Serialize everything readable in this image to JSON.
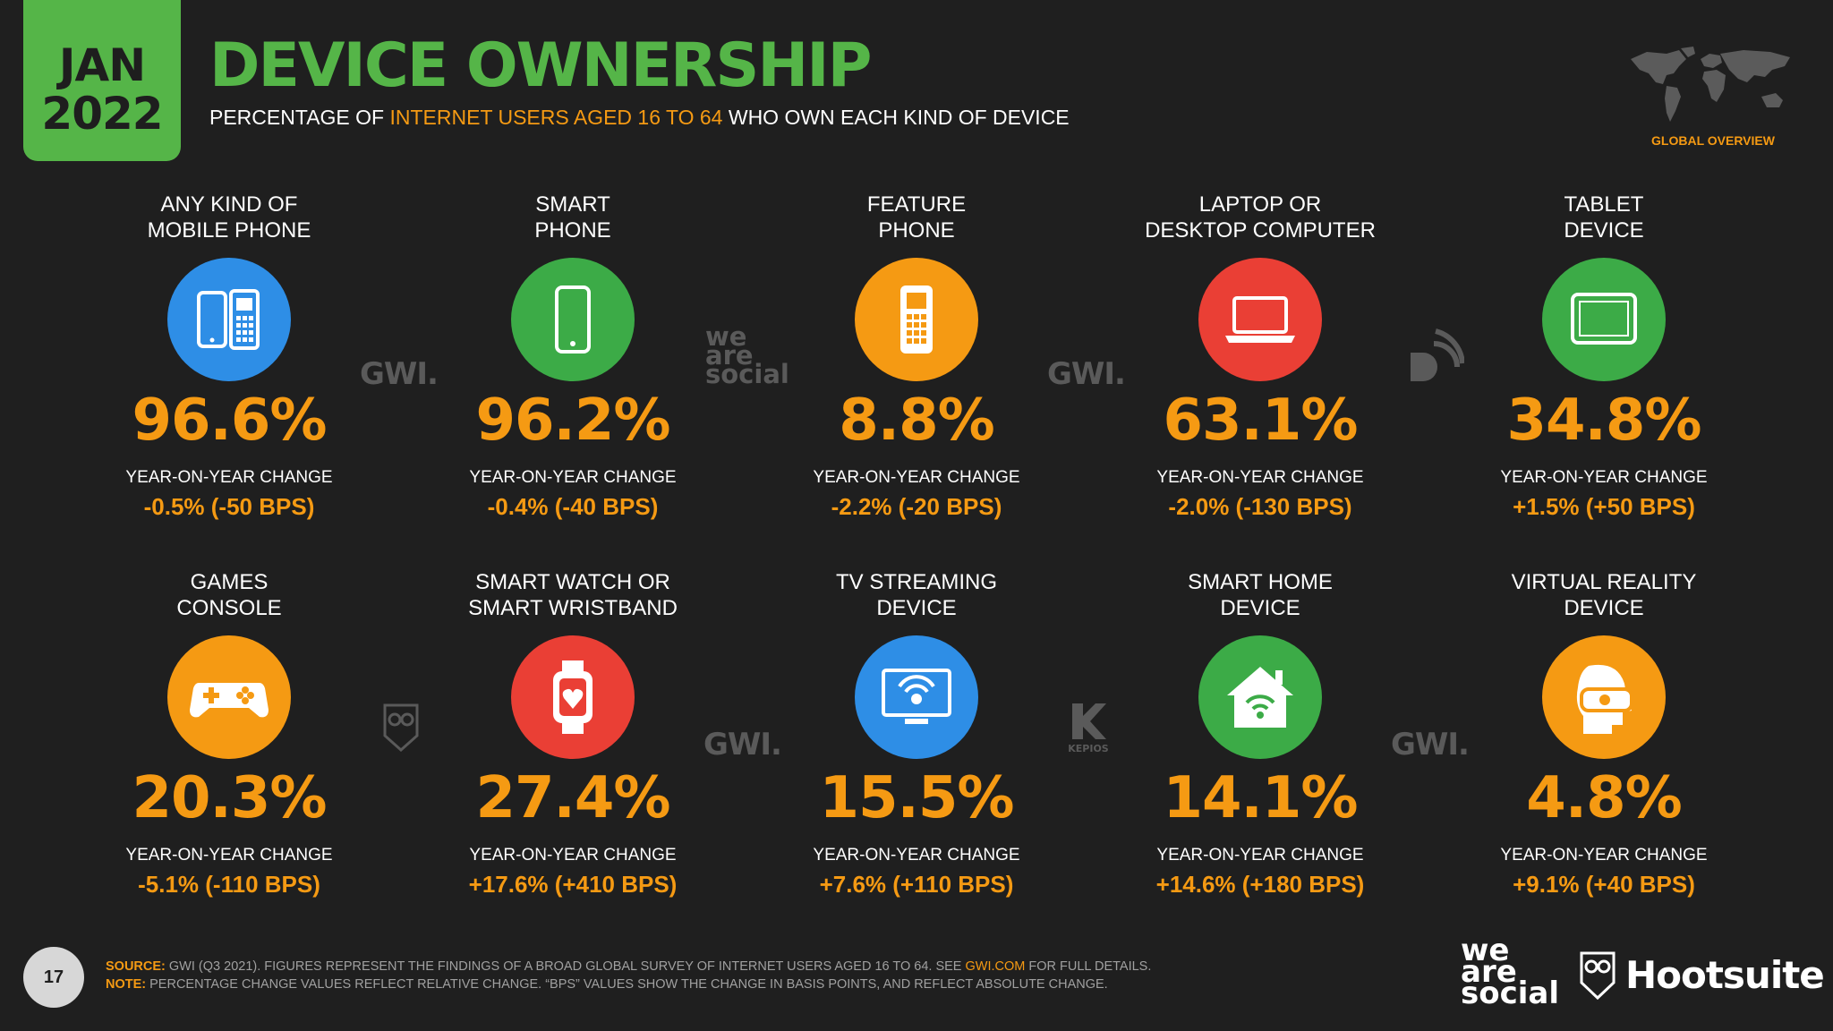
{
  "header": {
    "month": "JAN",
    "year": "2022",
    "title": "DEVICE OWNERSHIP",
    "subtitle_pre": "PERCENTAGE OF ",
    "subtitle_hl": "INTERNET USERS AGED 16 TO 64",
    "subtitle_post": " WHO OWN EACH KIND OF DEVICE",
    "global_label": "GLOBAL OVERVIEW"
  },
  "yoy_label": "YEAR-ON-YEAR CHANGE",
  "devices": [
    {
      "label1": "ANY KIND OF",
      "label2": "MOBILE PHONE",
      "value": "96.6%",
      "change": "-0.5% (-50 BPS)",
      "color": "#2e8ee6",
      "icon": "mobile-phones-icon"
    },
    {
      "label1": "SMART",
      "label2": "PHONE",
      "value": "96.2%",
      "change": "-0.4% (-40 BPS)",
      "color": "#3cab47",
      "icon": "smartphone-icon"
    },
    {
      "label1": "FEATURE",
      "label2": "PHONE",
      "value": "8.8%",
      "change": "-2.2% (-20 BPS)",
      "color": "#f59a13",
      "icon": "feature-phone-icon"
    },
    {
      "label1": "LAPTOP OR",
      "label2": "DESKTOP COMPUTER",
      "value": "63.1%",
      "change": "-2.0% (-130 BPS)",
      "color": "#ea3f35",
      "icon": "laptop-icon"
    },
    {
      "label1": "TABLET",
      "label2": "DEVICE",
      "value": "34.8%",
      "change": "+1.5% (+50 BPS)",
      "color": "#3cab47",
      "icon": "tablet-icon"
    },
    {
      "label1": "GAMES",
      "label2": "CONSOLE",
      "value": "20.3%",
      "change": "-5.1% (-110 BPS)",
      "color": "#f59a13",
      "icon": "gamepad-icon"
    },
    {
      "label1": "SMART WATCH OR",
      "label2": "SMART WRISTBAND",
      "value": "27.4%",
      "change": "+17.6% (+410 BPS)",
      "color": "#ea3f35",
      "icon": "smartwatch-icon"
    },
    {
      "label1": "TV STREAMING",
      "label2": "DEVICE",
      "value": "15.5%",
      "change": "+7.6% (+110 BPS)",
      "color": "#2e8ee6",
      "icon": "tv-streaming-icon"
    },
    {
      "label1": "SMART HOME",
      "label2": "DEVICE",
      "value": "14.1%",
      "change": "+14.6% (+180 BPS)",
      "color": "#3cab47",
      "icon": "smart-home-icon"
    },
    {
      "label1": "VIRTUAL REALITY",
      "label2": "DEVICE",
      "value": "4.8%",
      "change": "+9.1% (+40 BPS)",
      "color": "#f59a13",
      "icon": "vr-headset-icon"
    }
  ],
  "watermarks": {
    "gwi": "GWI.",
    "we_are_social": [
      "we",
      "are",
      "social"
    ],
    "kepios": "KEPIOS"
  },
  "footer": {
    "page_number": "17",
    "source_key": "SOURCE:",
    "source_text": " GWI (Q3 2021). FIGURES REPRESENT THE FINDINGS OF A BROAD GLOBAL SURVEY OF INTERNET USERS AGED 16 TO 64. SEE ",
    "source_link": "GWI.COM",
    "source_tail": " FOR FULL DETAILS.",
    "note_key": "NOTE:",
    "note_text": " PERCENTAGE CHANGE VALUES REFLECT RELATIVE CHANGE. “BPS” VALUES SHOW THE CHANGE IN BASIS POINTS, AND REFLECT ABSOLUTE CHANGE.",
    "brand_was": [
      "we",
      "are",
      "social"
    ],
    "brand_hootsuite": "Hootsuite"
  }
}
